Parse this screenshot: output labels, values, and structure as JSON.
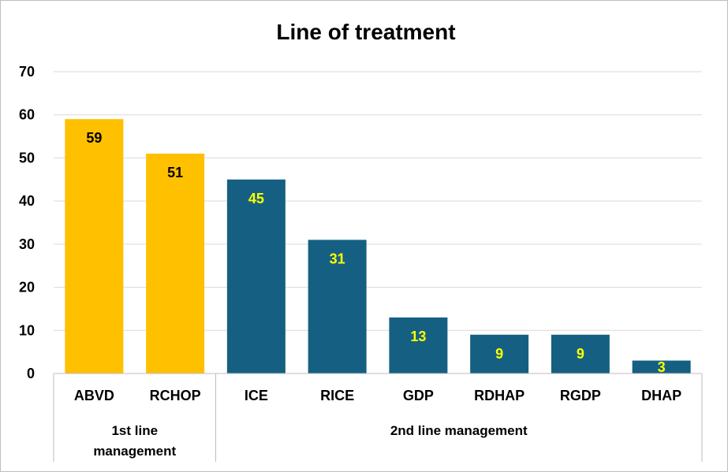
{
  "chart_data": {
    "type": "bar",
    "title": "Line of treatment",
    "categories": [
      "ABVD",
      "RCHOP",
      "ICE",
      "RICE",
      "GDP",
      "RDHAP",
      "RGDP",
      "DHAP"
    ],
    "values": [
      59,
      51,
      45,
      31,
      13,
      9,
      9,
      3
    ],
    "groups": [
      {
        "label_lines": [
          "1st line",
          "management"
        ],
        "categories": [
          "ABVD",
          "RCHOP"
        ],
        "color": "#FFC000",
        "label_color": "#000000"
      },
      {
        "label_lines": [
          "2nd line management"
        ],
        "categories": [
          "ICE",
          "RICE",
          "GDP",
          "RDHAP",
          "RGDP",
          "DHAP"
        ],
        "color": "#156082",
        "label_color": "#FFFF00"
      }
    ],
    "yticks": [
      0,
      10,
      20,
      30,
      40,
      50,
      60,
      70
    ],
    "ylim": [
      0,
      70
    ],
    "grid": true,
    "legend": "none"
  }
}
